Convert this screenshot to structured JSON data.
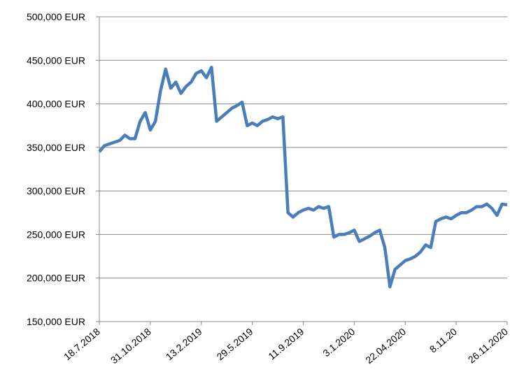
{
  "chart_data": {
    "type": "line",
    "categories": [
      "18.7.2018",
      null,
      null,
      null,
      null,
      null,
      null,
      null,
      null,
      null,
      "31.10.2018",
      null,
      null,
      null,
      null,
      null,
      null,
      null,
      null,
      null,
      "13.2.2019",
      null,
      null,
      null,
      null,
      null,
      null,
      null,
      null,
      null,
      "29.5.2019",
      null,
      null,
      null,
      null,
      null,
      null,
      null,
      null,
      null,
      "11.9.2019",
      null,
      null,
      null,
      null,
      null,
      null,
      null,
      null,
      null,
      "3.1.2020",
      null,
      null,
      null,
      null,
      null,
      null,
      null,
      null,
      null,
      "22.04.2020",
      null,
      null,
      null,
      null,
      null,
      null,
      null,
      null,
      null,
      "8.11.20",
      null,
      null,
      null,
      null,
      null,
      null,
      null,
      null,
      null,
      "26.11.2020"
    ],
    "series": [
      {
        "color": "#4a7ebb",
        "values": [
          345000,
          352000,
          354000,
          356000,
          358000,
          364000,
          360000,
          360000,
          380000,
          390000,
          370000,
          380000,
          415000,
          440000,
          418000,
          425000,
          412000,
          420000,
          425000,
          435000,
          438000,
          430000,
          442000,
          380000,
          385000,
          390000,
          395000,
          398000,
          402000,
          375000,
          378000,
          375000,
          380000,
          382000,
          385000,
          383000,
          385000,
          275000,
          270000,
          275000,
          278000,
          280000,
          278000,
          282000,
          280000,
          282000,
          247000,
          250000,
          250000,
          252000,
          255000,
          242000,
          245000,
          248000,
          252000,
          255000,
          235000,
          190000,
          210000,
          215000,
          220000,
          222000,
          225000,
          230000,
          238000,
          235000,
          265000,
          268000,
          270000,
          268000,
          272000,
          275000,
          275000,
          278000,
          282000,
          282000,
          285000,
          280000,
          272000,
          285000,
          284000
        ]
      }
    ],
    "ylim": [
      150000,
      500000
    ],
    "yticks": [
      {
        "value": 150000,
        "label": "150,000 EUR"
      },
      {
        "value": 200000,
        "label": "200,000 EUR"
      },
      {
        "value": 250000,
        "label": "250,000 EUR"
      },
      {
        "value": 300000,
        "label": "300,000 EUR"
      },
      {
        "value": 350000,
        "label": "350,000 EUR"
      },
      {
        "value": 400000,
        "label": "400,000 EUR"
      },
      {
        "value": 450000,
        "label": "450,000 EUR"
      },
      {
        "value": 500000,
        "label": "500,000 EUR"
      }
    ],
    "grid": true
  }
}
